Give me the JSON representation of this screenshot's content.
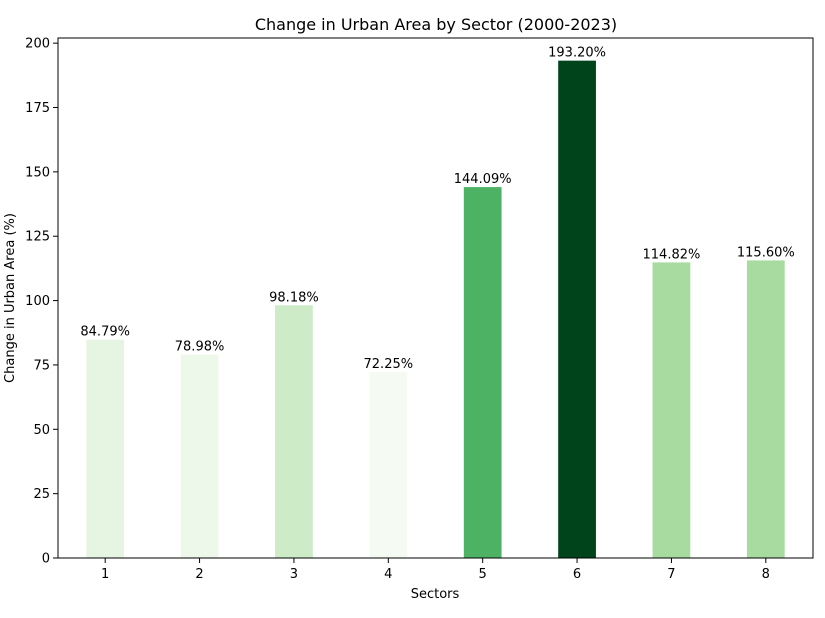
{
  "chart_data": {
    "type": "bar",
    "title": "Change in Urban Area by Sector (2000-2023)",
    "xlabel": "Sectors",
    "ylabel": "Change in Urban Area (%)",
    "categories": [
      "1",
      "2",
      "3",
      "4",
      "5",
      "6",
      "7",
      "8"
    ],
    "values": [
      84.79,
      78.98,
      98.18,
      72.25,
      144.09,
      193.2,
      114.82,
      115.6
    ],
    "data_labels": [
      "84.79%",
      "78.98%",
      "98.18%",
      "72.25%",
      "144.09%",
      "193.20%",
      "114.82%",
      "115.60%"
    ],
    "bar_colors": [
      "#e6f5e2",
      "#edf8ea",
      "#cdebc7",
      "#f5fbf3",
      "#4db264",
      "#00441b",
      "#a8dba0",
      "#a8dba0"
    ],
    "ylim": [
      0,
      202
    ],
    "yticks": [
      0,
      25,
      50,
      75,
      100,
      125,
      150,
      175,
      200
    ],
    "grid": false,
    "legend": "none"
  }
}
